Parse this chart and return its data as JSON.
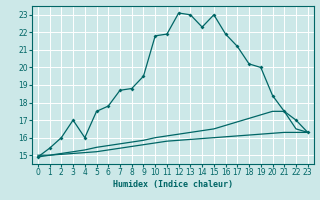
{
  "xlabel": "Humidex (Indice chaleur)",
  "bg_color": "#cce8e8",
  "grid_color": "#ffffff",
  "line_color": "#006666",
  "xlim": [
    -0.5,
    23.5
  ],
  "ylim": [
    14.5,
    23.5
  ],
  "yticks": [
    15,
    16,
    17,
    18,
    19,
    20,
    21,
    22,
    23
  ],
  "xticks": [
    0,
    1,
    2,
    3,
    4,
    5,
    6,
    7,
    8,
    9,
    10,
    11,
    12,
    13,
    14,
    15,
    16,
    17,
    18,
    19,
    20,
    21,
    22,
    23
  ],
  "line1_x": [
    0,
    1,
    2,
    3,
    4,
    5,
    6,
    7,
    8,
    9,
    10,
    11,
    12,
    13,
    14,
    15,
    16,
    17,
    18,
    19,
    20,
    21,
    22,
    23
  ],
  "line1_y": [
    14.9,
    15.4,
    16.0,
    17.0,
    16.0,
    17.5,
    17.8,
    18.7,
    18.8,
    19.5,
    21.8,
    21.9,
    23.1,
    23.0,
    22.3,
    23.0,
    21.9,
    21.2,
    20.2,
    20.0,
    18.4,
    17.5,
    17.0,
    16.3
  ],
  "line2_x": [
    0,
    1,
    2,
    3,
    4,
    5,
    6,
    7,
    8,
    9,
    10,
    11,
    12,
    13,
    14,
    15,
    16,
    17,
    18,
    19,
    20,
    21,
    22,
    23
  ],
  "line2_y": [
    15.0,
    15.0,
    15.1,
    15.2,
    15.3,
    15.45,
    15.55,
    15.65,
    15.75,
    15.85,
    16.0,
    16.1,
    16.2,
    16.3,
    16.4,
    16.5,
    16.7,
    16.9,
    17.1,
    17.3,
    17.5,
    17.5,
    16.5,
    16.3
  ],
  "line3_x": [
    0,
    1,
    2,
    3,
    4,
    5,
    6,
    7,
    8,
    9,
    10,
    11,
    12,
    13,
    14,
    15,
    16,
    17,
    18,
    19,
    20,
    21,
    22,
    23
  ],
  "line3_y": [
    14.9,
    15.0,
    15.05,
    15.1,
    15.15,
    15.2,
    15.3,
    15.4,
    15.5,
    15.6,
    15.7,
    15.8,
    15.85,
    15.9,
    15.95,
    16.0,
    16.05,
    16.1,
    16.15,
    16.2,
    16.25,
    16.3,
    16.3,
    16.3
  ]
}
